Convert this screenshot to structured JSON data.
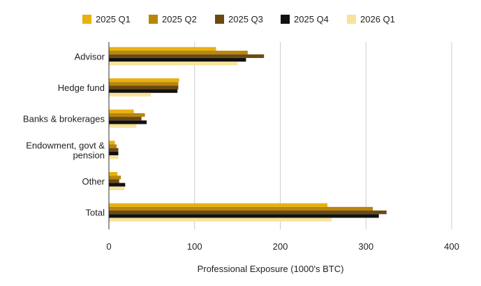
{
  "chart_data": {
    "type": "bar",
    "orientation": "horizontal",
    "categories": [
      "Advisor",
      "Hedge fund",
      "Banks & brokerages",
      "Endowment, govt & pension",
      "Other",
      "Total"
    ],
    "category_lines": [
      [
        "Advisor"
      ],
      [
        "Hedge fund"
      ],
      [
        "Banks & brokerages"
      ],
      [
        "Endowment, govt &",
        "pension"
      ],
      [
        "Other"
      ],
      [
        "Total"
      ]
    ],
    "series": [
      {
        "name": "2025 Q1",
        "color": "#E8B10E",
        "values": [
          125,
          82,
          29,
          7,
          10,
          255
        ]
      },
      {
        "name": "2025 Q2",
        "color": "#B8860B",
        "values": [
          162,
          81,
          42,
          9,
          14,
          308
        ]
      },
      {
        "name": "2025 Q3",
        "color": "#6B4A12",
        "values": [
          181,
          81,
          38,
          11,
          12,
          324
        ]
      },
      {
        "name": "2025 Q4",
        "color": "#111111",
        "values": [
          160,
          80,
          44,
          11,
          19,
          315
        ]
      },
      {
        "name": "2026 Q1",
        "color": "#F7E39A",
        "values": [
          150,
          49,
          32,
          11,
          18,
          260
        ]
      }
    ],
    "xlabel": "Professional Exposure (1000's BTC)",
    "ylabel": "",
    "xlim": [
      0,
      400
    ],
    "xticks": [
      0,
      100,
      200,
      300,
      400
    ],
    "grid": true,
    "legend_position": "top"
  }
}
